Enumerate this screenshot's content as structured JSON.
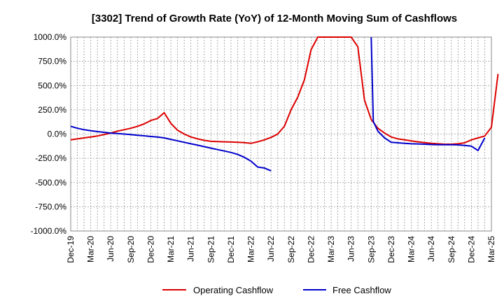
{
  "chart_data": {
    "type": "line",
    "title": "[3302]  Trend of Growth Rate (YoY) of 12-Month Moving Sum of Cashflows",
    "xlabel": "",
    "ylabel": "",
    "ylim": [
      -1000,
      1000
    ],
    "y_ticks": [
      1000,
      750,
      500,
      250,
      0,
      -250,
      -500,
      -750,
      -1000
    ],
    "y_tick_labels": [
      "1000.0%",
      "750.0%",
      "500.0%",
      "250.0%",
      "0.0%",
      "-250.0%",
      "-500.0%",
      "-750.0%",
      "-1000.0%"
    ],
    "x_ticks": [
      "Dec-19",
      "Mar-20",
      "Jun-20",
      "Sep-20",
      "Dec-20",
      "Mar-21",
      "Jun-21",
      "Sep-21",
      "Dec-21",
      "Mar-22",
      "Jun-22",
      "Sep-22",
      "Dec-22",
      "Mar-23",
      "Jun-23",
      "Sep-23",
      "Dec-23",
      "Mar-24",
      "Jun-24",
      "Sep-24",
      "Dec-24",
      "Mar-25"
    ],
    "grid": true,
    "legend_position": "bottom",
    "series": [
      {
        "name": "Operating Cashflow",
        "color": "#dd0000",
        "points": [
          [
            "Dec-19",
            -60
          ],
          [
            "Jan-20",
            -50
          ],
          [
            "Feb-20",
            -40
          ],
          [
            "Mar-20",
            -30
          ],
          [
            "Apr-20",
            -20
          ],
          [
            "May-20",
            -5
          ],
          [
            "Jun-20",
            10
          ],
          [
            "Jul-20",
            30
          ],
          [
            "Aug-20",
            45
          ],
          [
            "Sep-20",
            60
          ],
          [
            "Oct-20",
            80
          ],
          [
            "Nov-20",
            105
          ],
          [
            "Dec-20",
            140
          ],
          [
            "Jan-21",
            160
          ],
          [
            "Feb-21",
            220
          ],
          [
            "Mar-21",
            110
          ],
          [
            "Apr-21",
            40
          ],
          [
            "May-21",
            0
          ],
          [
            "Jun-21",
            -30
          ],
          [
            "Jul-21",
            -50
          ],
          [
            "Aug-21",
            -65
          ],
          [
            "Sep-21",
            -75
          ],
          [
            "Oct-21",
            -78
          ],
          [
            "Nov-21",
            -80
          ],
          [
            "Dec-21",
            -82
          ],
          [
            "Jan-22",
            -85
          ],
          [
            "Feb-22",
            -88
          ],
          [
            "Mar-22",
            -95
          ],
          [
            "Apr-22",
            -80
          ],
          [
            "May-22",
            -60
          ],
          [
            "Jun-22",
            -35
          ],
          [
            "Jul-22",
            0
          ],
          [
            "Aug-22",
            80
          ],
          [
            "Sep-22",
            250
          ],
          [
            "Oct-22",
            380
          ],
          [
            "Nov-22",
            560
          ],
          [
            "Dec-22",
            870
          ],
          [
            "Jan-23",
            1000
          ],
          [
            "Jun-23",
            1000
          ],
          [
            "Jul-23",
            900
          ],
          [
            "Aug-23",
            350
          ],
          [
            "Sep-23",
            150
          ],
          [
            "Oct-23",
            60
          ],
          [
            "Nov-23",
            10
          ],
          [
            "Dec-23",
            -30
          ],
          [
            "Jan-24",
            -50
          ],
          [
            "Feb-24",
            -60
          ],
          [
            "Mar-24",
            -70
          ],
          [
            "Apr-24",
            -80
          ],
          [
            "May-24",
            -88
          ],
          [
            "Jun-24",
            -95
          ],
          [
            "Jul-24",
            -100
          ],
          [
            "Aug-24",
            -105
          ],
          [
            "Sep-24",
            -105
          ],
          [
            "Oct-24",
            -100
          ],
          [
            "Nov-24",
            -90
          ],
          [
            "Dec-24",
            -60
          ],
          [
            "Jan-25",
            -40
          ],
          [
            "Feb-25",
            -20
          ],
          [
            "Mar-25",
            70
          ],
          [
            "Apr-25",
            620
          ]
        ]
      },
      {
        "name": "Free Cashflow",
        "color": "#0000cc",
        "points": [
          [
            "Dec-19",
            80
          ],
          [
            "Jan-20",
            60
          ],
          [
            "Feb-20",
            45
          ],
          [
            "Mar-20",
            35
          ],
          [
            "Apr-20",
            25
          ],
          [
            "May-20",
            18
          ],
          [
            "Jun-20",
            10
          ],
          [
            "Jul-20",
            5
          ],
          [
            "Aug-20",
            0
          ],
          [
            "Sep-20",
            -5
          ],
          [
            "Oct-20",
            -12
          ],
          [
            "Nov-20",
            -18
          ],
          [
            "Dec-20",
            -25
          ],
          [
            "Jan-21",
            -30
          ],
          [
            "Feb-21",
            -40
          ],
          [
            "Mar-21",
            -55
          ],
          [
            "Apr-21",
            -70
          ],
          [
            "May-21",
            -85
          ],
          [
            "Jun-21",
            -100
          ],
          [
            "Jul-21",
            -115
          ],
          [
            "Aug-21",
            -130
          ],
          [
            "Sep-21",
            -145
          ],
          [
            "Oct-21",
            -160
          ],
          [
            "Nov-21",
            -175
          ],
          [
            "Dec-21",
            -190
          ],
          [
            "Jan-22",
            -210
          ],
          [
            "Feb-22",
            -240
          ],
          [
            "Mar-22",
            -280
          ],
          [
            "Apr-22",
            -340
          ],
          [
            "May-22",
            -350
          ],
          [
            "Jun-22",
            -380
          ],
          null,
          [
            "Sep-23",
            1000
          ],
          [
            "Sep-23b",
            130
          ],
          [
            "Oct-23",
            30
          ],
          [
            "Nov-23",
            -40
          ],
          [
            "Dec-23",
            -85
          ],
          [
            "Jan-24",
            -90
          ],
          [
            "Feb-24",
            -95
          ],
          [
            "Mar-24",
            -100
          ],
          [
            "Apr-24",
            -102
          ],
          [
            "May-24",
            -105
          ],
          [
            "Jun-24",
            -108
          ],
          [
            "Jul-24",
            -110
          ],
          [
            "Aug-24",
            -110
          ],
          [
            "Sep-24",
            -110
          ],
          [
            "Oct-24",
            -112
          ],
          [
            "Nov-24",
            -118
          ],
          [
            "Dec-24",
            -125
          ],
          [
            "Jan-25",
            -170
          ],
          [
            "Feb-25",
            -40
          ]
        ]
      }
    ]
  }
}
